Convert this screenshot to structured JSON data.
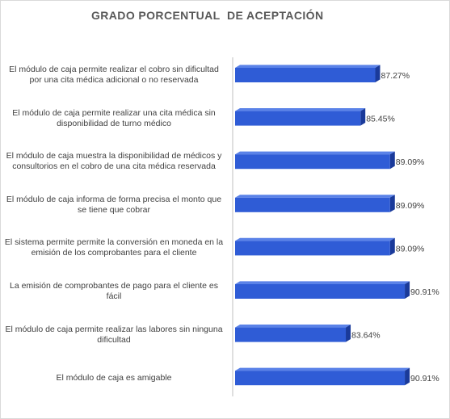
{
  "chart_data": {
    "type": "bar",
    "orientation": "horizontal",
    "title": "GRADO PORCENTUAL  DE ACEPTACIÓN",
    "categories": [
      "El módulo de caja permite realizar el cobro sin dificultad por una cita médica adicional o no reservada",
      "El módulo de caja permite realizar una cita médica sin disponibilidad de turno médico",
      "El módulo de caja muestra la disponibilidad de médicos y consultorios en el cobro de una cita médica reservada",
      "El módulo de caja informa de forma precisa el monto que se tiene que cobrar",
      "El sistema permite permite la conversión en moneda en la emisión de los comprobantes para el cliente",
      "La emisión de comprobantes de pago para el cliente es fácil",
      "El módulo de caja permite realizar las labores sin ninguna dificultad",
      "El módulo de caja es amigable"
    ],
    "values": [
      87.27,
      85.45,
      89.09,
      89.09,
      89.09,
      90.91,
      83.64,
      90.91
    ],
    "data_labels": [
      "87.27%",
      "85.45%",
      "89.09%",
      "89.09%",
      "89.09%",
      "90.91%",
      "83.64%",
      "90.91%"
    ],
    "xlim": [
      70,
      92
    ],
    "bar_style": "3d",
    "grid": false,
    "legend": "none",
    "colors": {
      "bar_front": "#2f5cd6",
      "bar_top": "#5a82e8",
      "bar_side": "#1a3a9a",
      "label_text": "#404040",
      "title_text": "#595959",
      "axis": "#bfbfbf"
    }
  }
}
